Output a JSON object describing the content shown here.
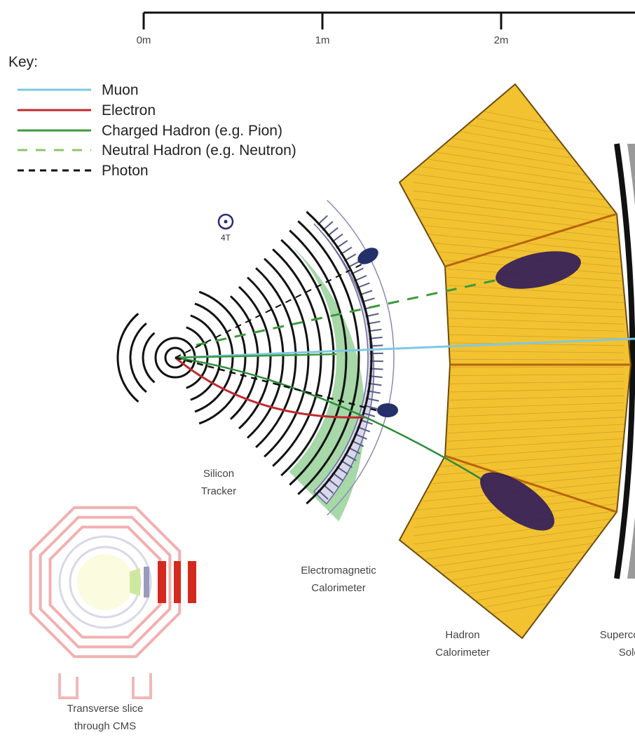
{
  "scale": {
    "ticks": [
      "0m",
      "1m",
      "2m"
    ]
  },
  "key": {
    "title": "Key:",
    "items": [
      "Muon",
      "Electron",
      "Charged Hadron (e.g. Pion)",
      "Neutral Hadron (e.g. Neutron)",
      "Photon"
    ]
  },
  "field": "4T",
  "labels": {
    "tracker": [
      "Silicon",
      "Tracker"
    ],
    "ecal": [
      "Electromagnetic",
      "Calorimeter"
    ],
    "hcal": [
      "Hadron",
      "Calorimeter"
    ],
    "solenoid": [
      "Superconducting",
      "Solenoid"
    ],
    "slice": [
      "Transverse slice",
      "through CMS"
    ]
  }
}
